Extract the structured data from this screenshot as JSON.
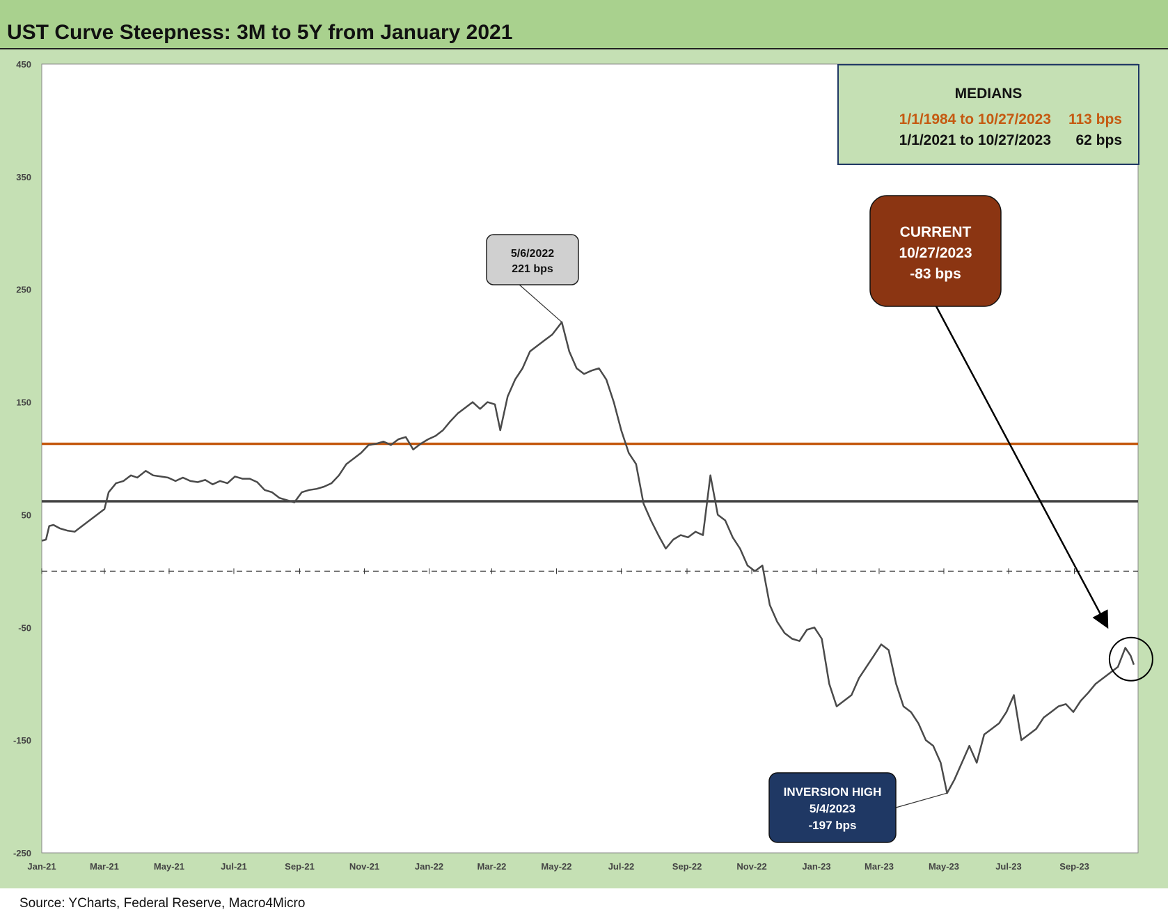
{
  "title": "UST Curve Steepness: 3M to 5Y from January 2021",
  "source": "Source: YCharts, Federal Reserve, Macro4Micro",
  "colors": {
    "header_bg": "#a9d18e",
    "chart_bg": "#c5e0b4",
    "series": "#4a4a4a",
    "median_long": "#c55a11",
    "median_short": "#404040",
    "current_box": "#8b3512",
    "inversion_box": "#1f3864",
    "peak_box": "#d0d0d0"
  },
  "medians_box": {
    "heading": "MEDIANS",
    "rows": [
      {
        "label": "1/1/1984 to 10/27/2023",
        "value": "113 bps",
        "color": "#c55a11"
      },
      {
        "label": "1/1/2021 to 10/27/2023",
        "value": "62 bps",
        "color": "#111111"
      }
    ]
  },
  "annotations": {
    "peak": {
      "line1": "5/6/2022",
      "line2": "221 bps",
      "date": "2022-05-06",
      "value": 221
    },
    "current": {
      "line1": "CURRENT",
      "line2": "10/27/2023",
      "line3": "-83 bps",
      "date": "2023-10-27",
      "value": -83
    },
    "inversion": {
      "line1": "INVERSION HIGH",
      "line2": "5/4/2023",
      "line3": "-197 bps",
      "date": "2023-05-04",
      "value": -197
    }
  },
  "chart_data": {
    "type": "line",
    "title": "UST Curve Steepness: 3M to 5Y from January 2021",
    "ylim": [
      -250,
      450
    ],
    "yticks": [
      450,
      350,
      250,
      150,
      50,
      -50,
      -150,
      -250
    ],
    "ytick_labels": [
      "450",
      "350",
      "250",
      "150",
      "50",
      "-50",
      "-150",
      "-250"
    ],
    "xlim": [
      "2021-01-01",
      "2023-10-31"
    ],
    "xticks": [
      "Jan-21",
      "Mar-21",
      "May-21",
      "Jul-21",
      "Sep-21",
      "Nov-21",
      "Jan-22",
      "Mar-22",
      "May-22",
      "Jul-22",
      "Sep-22",
      "Nov-22",
      "Jan-23",
      "Mar-23",
      "May-23",
      "Jul-23",
      "Sep-23"
    ],
    "zero_line": "dashed",
    "reference_lines": [
      {
        "name": "1/1/1984 to 10/27/2023",
        "value": 113,
        "color": "#c55a11"
      },
      {
        "name": "1/1/2021 to 10/27/2023",
        "value": 62,
        "color": "#404040"
      }
    ],
    "series": [
      {
        "color": "#4a4a4a",
        "points": [
          [
            "2021-01-01",
            27
          ],
          [
            "2021-01-05",
            28
          ],
          [
            "2021-01-08",
            40
          ],
          [
            "2021-01-12",
            41
          ],
          [
            "2021-01-18",
            38
          ],
          [
            "2021-01-25",
            36
          ],
          [
            "2021-02-01",
            35
          ],
          [
            "2021-02-08",
            40
          ],
          [
            "2021-02-15",
            45
          ],
          [
            "2021-02-22",
            50
          ],
          [
            "2021-03-01",
            55
          ],
          [
            "2021-03-05",
            70
          ],
          [
            "2021-03-12",
            78
          ],
          [
            "2021-03-19",
            80
          ],
          [
            "2021-03-26",
            85
          ],
          [
            "2021-04-01",
            83
          ],
          [
            "2021-04-09",
            89
          ],
          [
            "2021-04-16",
            85
          ],
          [
            "2021-04-23",
            84
          ],
          [
            "2021-04-30",
            83
          ],
          [
            "2021-05-07",
            80
          ],
          [
            "2021-05-14",
            83
          ],
          [
            "2021-05-21",
            80
          ],
          [
            "2021-05-28",
            79
          ],
          [
            "2021-06-04",
            81
          ],
          [
            "2021-06-11",
            77
          ],
          [
            "2021-06-18",
            80
          ],
          [
            "2021-06-25",
            78
          ],
          [
            "2021-07-02",
            84
          ],
          [
            "2021-07-09",
            82
          ],
          [
            "2021-07-16",
            82
          ],
          [
            "2021-07-23",
            79
          ],
          [
            "2021-07-30",
            72
          ],
          [
            "2021-08-06",
            70
          ],
          [
            "2021-08-13",
            65
          ],
          [
            "2021-08-20",
            63
          ],
          [
            "2021-08-27",
            61
          ],
          [
            "2021-09-03",
            70
          ],
          [
            "2021-09-10",
            72
          ],
          [
            "2021-09-17",
            73
          ],
          [
            "2021-09-24",
            75
          ],
          [
            "2021-10-01",
            78
          ],
          [
            "2021-10-08",
            85
          ],
          [
            "2021-10-15",
            95
          ],
          [
            "2021-10-22",
            100
          ],
          [
            "2021-10-29",
            105
          ],
          [
            "2021-11-05",
            112
          ],
          [
            "2021-11-12",
            113
          ],
          [
            "2021-11-19",
            115
          ],
          [
            "2021-11-26",
            112
          ],
          [
            "2021-12-03",
            117
          ],
          [
            "2021-12-10",
            119
          ],
          [
            "2021-12-17",
            108
          ],
          [
            "2021-12-24",
            113
          ],
          [
            "2021-12-31",
            117
          ],
          [
            "2022-01-07",
            120
          ],
          [
            "2022-01-14",
            125
          ],
          [
            "2022-01-21",
            133
          ],
          [
            "2022-01-28",
            140
          ],
          [
            "2022-02-04",
            145
          ],
          [
            "2022-02-11",
            150
          ],
          [
            "2022-02-18",
            144
          ],
          [
            "2022-02-25",
            150
          ],
          [
            "2022-03-04",
            148
          ],
          [
            "2022-03-09",
            125
          ],
          [
            "2022-03-16",
            155
          ],
          [
            "2022-03-23",
            170
          ],
          [
            "2022-03-30",
            180
          ],
          [
            "2022-04-06",
            195
          ],
          [
            "2022-04-13",
            200
          ],
          [
            "2022-04-20",
            205
          ],
          [
            "2022-04-27",
            210
          ],
          [
            "2022-05-06",
            221
          ],
          [
            "2022-05-13",
            195
          ],
          [
            "2022-05-20",
            180
          ],
          [
            "2022-05-27",
            175
          ],
          [
            "2022-06-03",
            178
          ],
          [
            "2022-06-10",
            180
          ],
          [
            "2022-06-17",
            170
          ],
          [
            "2022-06-24",
            150
          ],
          [
            "2022-07-01",
            125
          ],
          [
            "2022-07-08",
            105
          ],
          [
            "2022-07-15",
            95
          ],
          [
            "2022-07-22",
            60
          ],
          [
            "2022-07-29",
            45
          ],
          [
            "2022-08-05",
            32
          ],
          [
            "2022-08-12",
            20
          ],
          [
            "2022-08-19",
            28
          ],
          [
            "2022-08-26",
            32
          ],
          [
            "2022-09-02",
            30
          ],
          [
            "2022-09-09",
            35
          ],
          [
            "2022-09-16",
            32
          ],
          [
            "2022-09-23",
            85
          ],
          [
            "2022-09-30",
            50
          ],
          [
            "2022-10-07",
            45
          ],
          [
            "2022-10-14",
            30
          ],
          [
            "2022-10-21",
            20
          ],
          [
            "2022-10-28",
            5
          ],
          [
            "2022-11-04",
            0
          ],
          [
            "2022-11-11",
            5
          ],
          [
            "2022-11-18",
            -30
          ],
          [
            "2022-11-25",
            -45
          ],
          [
            "2022-12-02",
            -55
          ],
          [
            "2022-12-09",
            -60
          ],
          [
            "2022-12-16",
            -62
          ],
          [
            "2022-12-23",
            -52
          ],
          [
            "2022-12-30",
            -50
          ],
          [
            "2023-01-06",
            -60
          ],
          [
            "2023-01-13",
            -100
          ],
          [
            "2023-01-20",
            -120
          ],
          [
            "2023-01-27",
            -115
          ],
          [
            "2023-02-03",
            -110
          ],
          [
            "2023-02-10",
            -95
          ],
          [
            "2023-02-17",
            -85
          ],
          [
            "2023-02-24",
            -75
          ],
          [
            "2023-03-03",
            -65
          ],
          [
            "2023-03-10",
            -70
          ],
          [
            "2023-03-17",
            -100
          ],
          [
            "2023-03-24",
            -120
          ],
          [
            "2023-03-31",
            -125
          ],
          [
            "2023-04-07",
            -135
          ],
          [
            "2023-04-14",
            -150
          ],
          [
            "2023-04-21",
            -155
          ],
          [
            "2023-04-28",
            -170
          ],
          [
            "2023-05-04",
            -197
          ],
          [
            "2023-05-11",
            -185
          ],
          [
            "2023-05-18",
            -170
          ],
          [
            "2023-05-25",
            -155
          ],
          [
            "2023-06-01",
            -170
          ],
          [
            "2023-06-08",
            -145
          ],
          [
            "2023-06-15",
            -140
          ],
          [
            "2023-06-22",
            -135
          ],
          [
            "2023-06-29",
            -125
          ],
          [
            "2023-07-06",
            -110
          ],
          [
            "2023-07-13",
            -150
          ],
          [
            "2023-07-20",
            -145
          ],
          [
            "2023-07-27",
            -140
          ],
          [
            "2023-08-03",
            -130
          ],
          [
            "2023-08-10",
            -125
          ],
          [
            "2023-08-17",
            -120
          ],
          [
            "2023-08-24",
            -118
          ],
          [
            "2023-08-31",
            -125
          ],
          [
            "2023-09-07",
            -115
          ],
          [
            "2023-09-14",
            -108
          ],
          [
            "2023-09-21",
            -100
          ],
          [
            "2023-09-28",
            -95
          ],
          [
            "2023-10-05",
            -90
          ],
          [
            "2023-10-12",
            -85
          ],
          [
            "2023-10-19",
            -68
          ],
          [
            "2023-10-24",
            -75
          ],
          [
            "2023-10-27",
            -83
          ]
        ]
      }
    ]
  }
}
